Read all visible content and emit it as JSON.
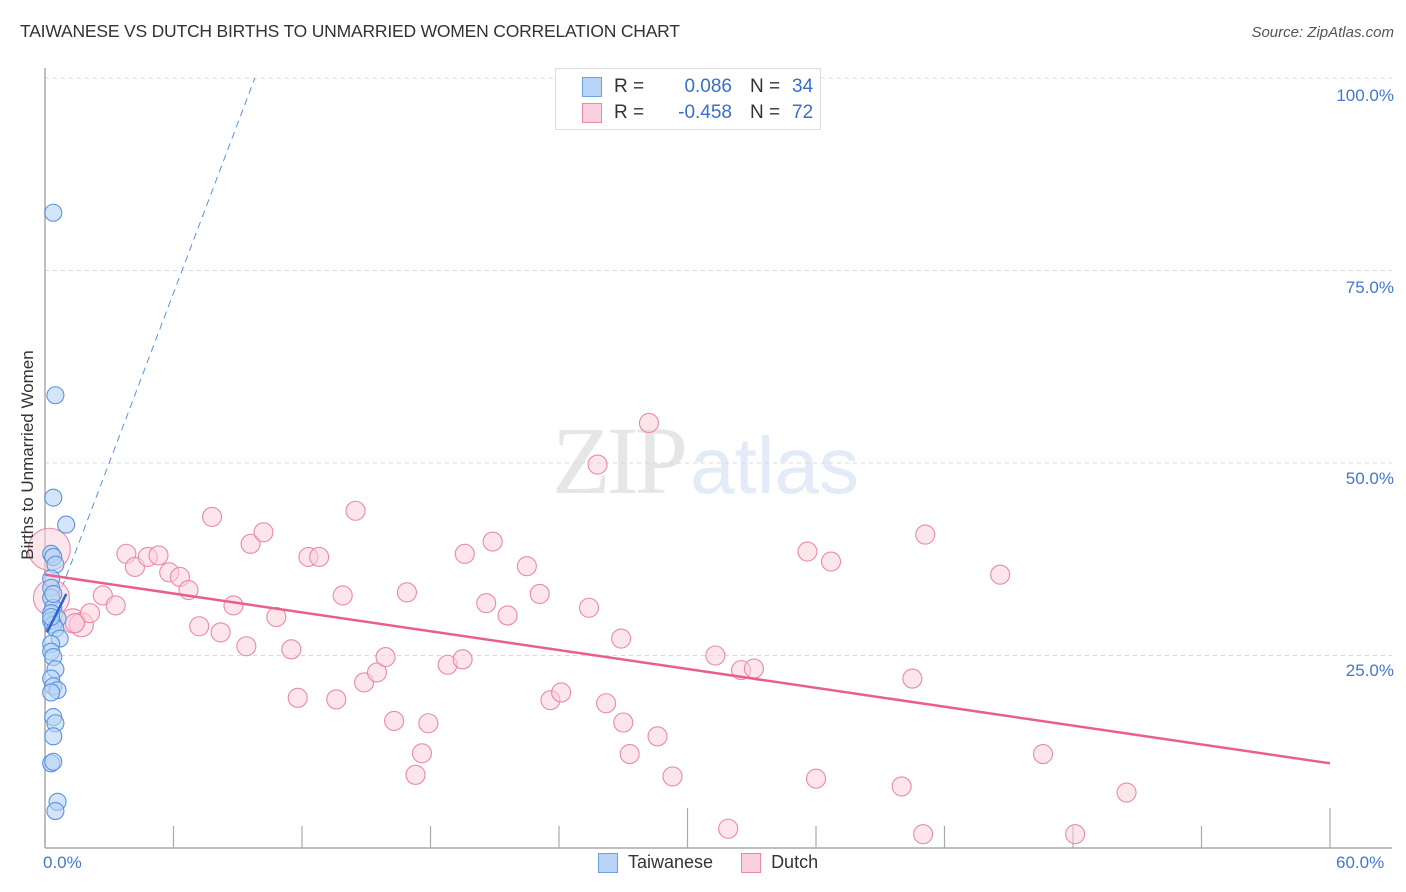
{
  "header": {
    "title": "TAIWANESE VS DUTCH BIRTHS TO UNMARRIED WOMEN CORRELATION CHART",
    "source": "Source: ZipAtlas.com"
  },
  "legend": {
    "rows": [
      {
        "series": "Taiwanese",
        "r_label": "R =",
        "r_value": "0.086",
        "n_label": "N =",
        "n_value": "34"
      },
      {
        "series": "Dutch",
        "r_label": "R =",
        "r_value": "-0.458",
        "n_label": "N =",
        "n_value": "72"
      }
    ]
  },
  "bottom_legend": [
    "Taiwanese",
    "Dutch"
  ],
  "watermark": {
    "part1": "ZIP",
    "part2": "atlas"
  },
  "colors": {
    "taiwanese_fill": "#b8d4f5",
    "taiwanese_stroke": "#5b93e0",
    "taiwanese_line": "#2a64d0",
    "dutch_fill": "#fbd0dd",
    "dutch_stroke": "#e98aa8",
    "dutch_line": "#e8608a",
    "tick_label": "#4477cc",
    "grid": "#d8d8d8"
  },
  "chart_data": {
    "type": "scatter",
    "title": "TAIWANESE VS DUTCH BIRTHS TO UNMARRIED WOMEN CORRELATION CHART",
    "xlabel": "",
    "ylabel": "Births to Unmarried Women",
    "xlim": [
      0,
      60
    ],
    "ylim": [
      0,
      100
    ],
    "x_tick_labels": [
      "0.0%",
      "60.0%"
    ],
    "y_tick_labels": [
      "100.0%",
      "75.0%",
      "50.0%",
      "25.0%"
    ],
    "y_ticks": [
      100,
      75,
      50,
      25
    ],
    "grid": true,
    "legend_position": "top-center",
    "series": [
      {
        "name": "Taiwanese",
        "r": 0.086,
        "n": 34,
        "points": [
          [
            0.2,
            82.5
          ],
          [
            0.3,
            58.8
          ],
          [
            0.2,
            45.5
          ],
          [
            0.8,
            42.0
          ],
          [
            0.1,
            38.2
          ],
          [
            0.2,
            37.8
          ],
          [
            0.3,
            36.8
          ],
          [
            0.1,
            35.0
          ],
          [
            0.1,
            33.8
          ],
          [
            0.1,
            32.5
          ],
          [
            0.2,
            31.2
          ],
          [
            0.1,
            30.5
          ],
          [
            0.4,
            29.8
          ],
          [
            0.1,
            29.5
          ],
          [
            0.2,
            29.0
          ],
          [
            0.3,
            28.5
          ],
          [
            0.5,
            27.2
          ],
          [
            0.1,
            26.5
          ],
          [
            0.1,
            25.5
          ],
          [
            0.2,
            24.8
          ],
          [
            0.3,
            23.2
          ],
          [
            0.1,
            22.0
          ],
          [
            0.2,
            21.0
          ],
          [
            0.4,
            20.5
          ],
          [
            0.1,
            20.2
          ],
          [
            0.2,
            17.0
          ],
          [
            0.3,
            16.2
          ],
          [
            0.2,
            14.5
          ],
          [
            0.1,
            11.0
          ],
          [
            0.2,
            11.2
          ],
          [
            0.4,
            6.0
          ],
          [
            0.3,
            4.8
          ],
          [
            0.1,
            30.0
          ],
          [
            0.2,
            33.0
          ]
        ],
        "trendline": {
          "x": [
            0.0,
            0.9
          ],
          "y": [
            28.0,
            33.0
          ],
          "extended_dashed": {
            "x": [
              0.0,
              9.8
            ],
            "y": [
              28.0,
              100.0
            ]
          }
        }
      },
      {
        "name": "Dutch",
        "r": -0.458,
        "n": 72,
        "points": [
          [
            0.2,
            38.8
          ],
          [
            0.3,
            32.5
          ],
          [
            1.3,
            29.5
          ],
          [
            1.7,
            29.0
          ],
          [
            2.1,
            30.5
          ],
          [
            2.7,
            32.8
          ],
          [
            3.3,
            31.5
          ],
          [
            3.8,
            38.2
          ],
          [
            4.2,
            36.5
          ],
          [
            4.8,
            37.8
          ],
          [
            5.3,
            38.0
          ],
          [
            5.8,
            35.8
          ],
          [
            6.3,
            35.2
          ],
          [
            6.7,
            33.5
          ],
          [
            7.2,
            28.8
          ],
          [
            7.8,
            43.0
          ],
          [
            8.2,
            28.0
          ],
          [
            8.8,
            31.5
          ],
          [
            9.4,
            26.2
          ],
          [
            9.6,
            39.5
          ],
          [
            10.2,
            41.0
          ],
          [
            10.8,
            30.0
          ],
          [
            11.5,
            25.8
          ],
          [
            11.8,
            19.5
          ],
          [
            12.3,
            37.8
          ],
          [
            12.8,
            37.8
          ],
          [
            13.6,
            19.3
          ],
          [
            13.9,
            32.8
          ],
          [
            14.5,
            43.8
          ],
          [
            14.9,
            21.5
          ],
          [
            15.5,
            22.8
          ],
          [
            15.9,
            24.8
          ],
          [
            16.3,
            16.5
          ],
          [
            16.9,
            33.2
          ],
          [
            17.3,
            9.5
          ],
          [
            17.6,
            12.3
          ],
          [
            17.9,
            16.2
          ],
          [
            18.8,
            23.8
          ],
          [
            19.5,
            24.5
          ],
          [
            19.6,
            38.2
          ],
          [
            20.6,
            31.8
          ],
          [
            20.9,
            39.8
          ],
          [
            21.6,
            30.2
          ],
          [
            22.5,
            36.6
          ],
          [
            23.1,
            33.0
          ],
          [
            23.6,
            19.2
          ],
          [
            24.1,
            20.2
          ],
          [
            25.4,
            31.2
          ],
          [
            25.8,
            49.8
          ],
          [
            26.2,
            18.8
          ],
          [
            26.9,
            27.2
          ],
          [
            27.0,
            16.3
          ],
          [
            27.3,
            12.2
          ],
          [
            28.2,
            55.2
          ],
          [
            28.6,
            14.5
          ],
          [
            29.3,
            9.3
          ],
          [
            31.3,
            25.0
          ],
          [
            31.9,
            2.5
          ],
          [
            32.5,
            23.1
          ],
          [
            33.1,
            23.3
          ],
          [
            35.6,
            38.5
          ],
          [
            36.0,
            9.0
          ],
          [
            36.7,
            37.2
          ],
          [
            40.0,
            8.0
          ],
          [
            40.5,
            22.0
          ],
          [
            41.0,
            1.8
          ],
          [
            41.1,
            40.7
          ],
          [
            44.6,
            35.5
          ],
          [
            46.6,
            12.2
          ],
          [
            48.1,
            1.8
          ],
          [
            50.5,
            7.2
          ],
          [
            1.4,
            29.2
          ]
        ],
        "trendline": {
          "x": [
            0.0,
            60.0
          ],
          "y": [
            35.5,
            11.0
          ]
        }
      }
    ]
  }
}
